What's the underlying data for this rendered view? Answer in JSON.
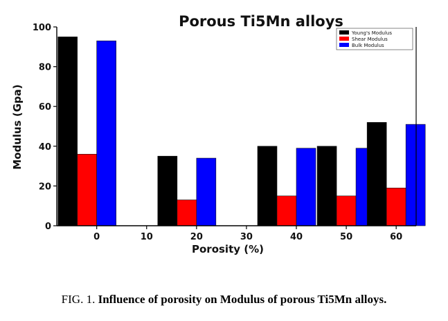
{
  "caption": {
    "label": "FIG. 1.",
    "text": "Influence of porosity on Modulus of porous Ti5Mn alloys."
  },
  "chart_data": {
    "type": "bar",
    "title": "Porous Ti5Mn alloys",
    "xlabel": "Porosity (%)",
    "ylabel": "Modulus (Gpa)",
    "xlim": [
      -8,
      64
    ],
    "ylim": [
      0,
      100
    ],
    "xticks": [
      0,
      10,
      20,
      30,
      40,
      50,
      60
    ],
    "yticks": [
      0,
      20,
      40,
      60,
      80,
      100
    ],
    "legend_position": "top-right",
    "groups": [
      0,
      20,
      40,
      50,
      60
    ],
    "series": [
      {
        "name": "Young's Modulus",
        "color": "#000000",
        "values": [
          95,
          35,
          40,
          40,
          52
        ]
      },
      {
        "name": "Shear Modulus",
        "color": "#ff0000",
        "values": [
          36,
          13,
          15,
          15,
          19
        ]
      },
      {
        "name": "Bulk Modulus",
        "color": "#0000ff",
        "values": [
          93,
          34,
          39,
          39,
          51
        ]
      }
    ]
  }
}
